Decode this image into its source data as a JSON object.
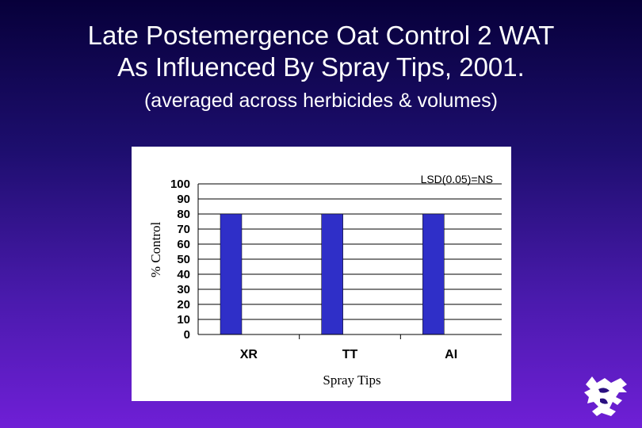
{
  "slide": {
    "title_line_1": "Late Postemergence Oat Control 2 WAT",
    "title_line_2": "As Influenced By Spray Tips, 2001.",
    "subtitle": "(averaged across herbicides & volumes)"
  },
  "logo": {
    "icon": "wildcat-logo-icon",
    "color": "#ffffff"
  },
  "colors": {
    "background_top": "#07003a",
    "background_bottom": "#6f1fd6",
    "bar_fill": "#2f2fc8",
    "panel": "#ffffff"
  },
  "chart_data": {
    "type": "bar",
    "categories": [
      "XR",
      "TT",
      "AI"
    ],
    "values": [
      80,
      80,
      80
    ],
    "title": "",
    "xlabel": "Spray Tips",
    "ylabel": "% Control",
    "ylim": [
      0,
      100
    ],
    "yticks": [
      0,
      10,
      20,
      30,
      40,
      50,
      60,
      70,
      80,
      90,
      100
    ],
    "grid": true,
    "annotation": "LSD(0.05)=NS"
  }
}
